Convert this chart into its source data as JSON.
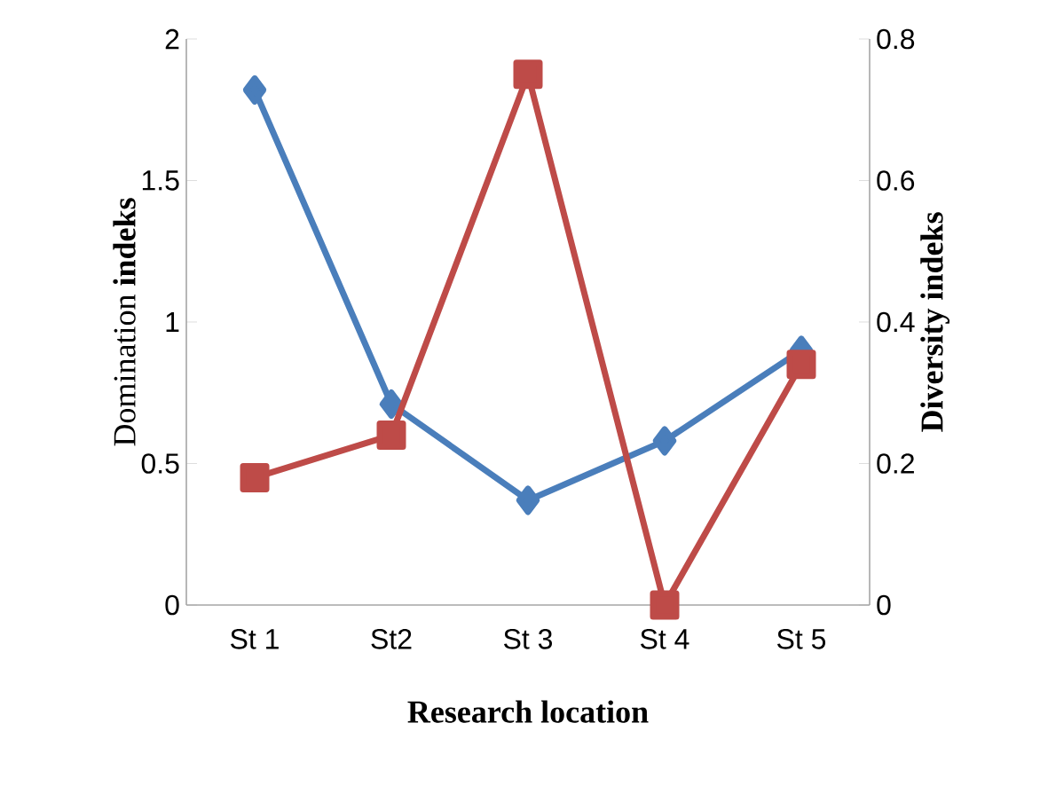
{
  "chart_data": {
    "type": "line",
    "xlabel": "Research location",
    "ylabel": "Domination **indeks**",
    "y2label": "Diversity indeks",
    "categories": [
      "St 1",
      "St2",
      "St 3",
      "St 4",
      "St 5"
    ],
    "series": [
      {
        "color": "#4a7ebb",
        "marker": "diamond",
        "values": [
          1.82,
          0.71,
          0.37,
          0.58,
          0.9
        ]
      },
      {
        "color": "#be4b48",
        "marker": "square",
        "axis": "y2",
        "values": [
          0.18,
          0.24,
          0.75,
          0.0,
          0.34
        ]
      }
    ],
    "ylim": [
      0,
      2
    ],
    "yticks": [
      0,
      0.5,
      1,
      1.5,
      2
    ],
    "y2lim": [
      0,
      0.8
    ],
    "y2ticks": [
      0,
      0.2,
      0.4,
      0.6,
      0.8
    ],
    "line_style": "solid",
    "grid": false
  }
}
